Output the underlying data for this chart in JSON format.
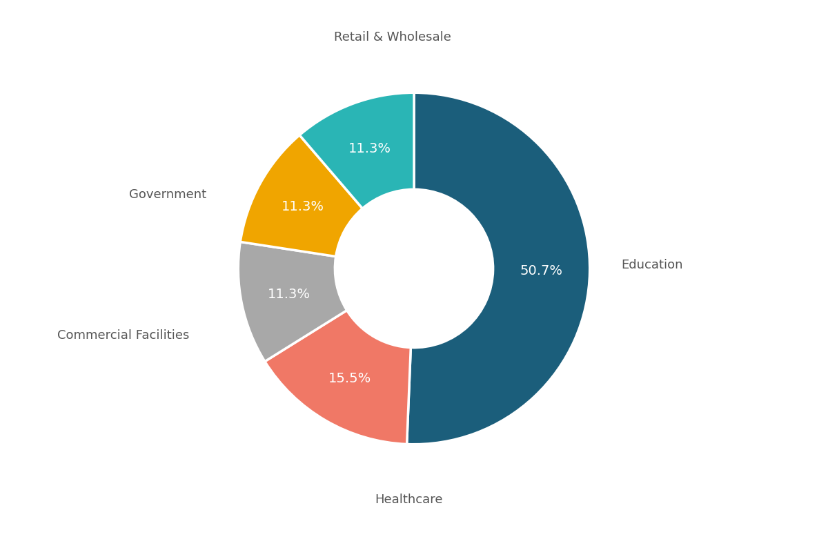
{
  "labels": [
    "Education",
    "Healthcare",
    "Commercial Facilities",
    "Government",
    "Retail & Wholesale"
  ],
  "values": [
    50.7,
    15.5,
    11.3,
    11.3,
    11.3
  ],
  "colors": [
    "#1b5e7b",
    "#f07866",
    "#a8a8a8",
    "#f0a500",
    "#2ab5b5"
  ],
  "pct_labels": [
    "50.7%",
    "15.5%",
    "11.3%",
    "11.3%",
    "11.3%"
  ],
  "label_colors": [
    "white",
    "white",
    "white",
    "white",
    "white"
  ],
  "background_color": "#ffffff",
  "donut_width": 0.55,
  "font_size_pct": 14,
  "font_size_label": 13,
  "startangle": 90,
  "label_text_color": "#555555",
  "edge_color": "#ffffff",
  "edge_linewidth": 2.5
}
